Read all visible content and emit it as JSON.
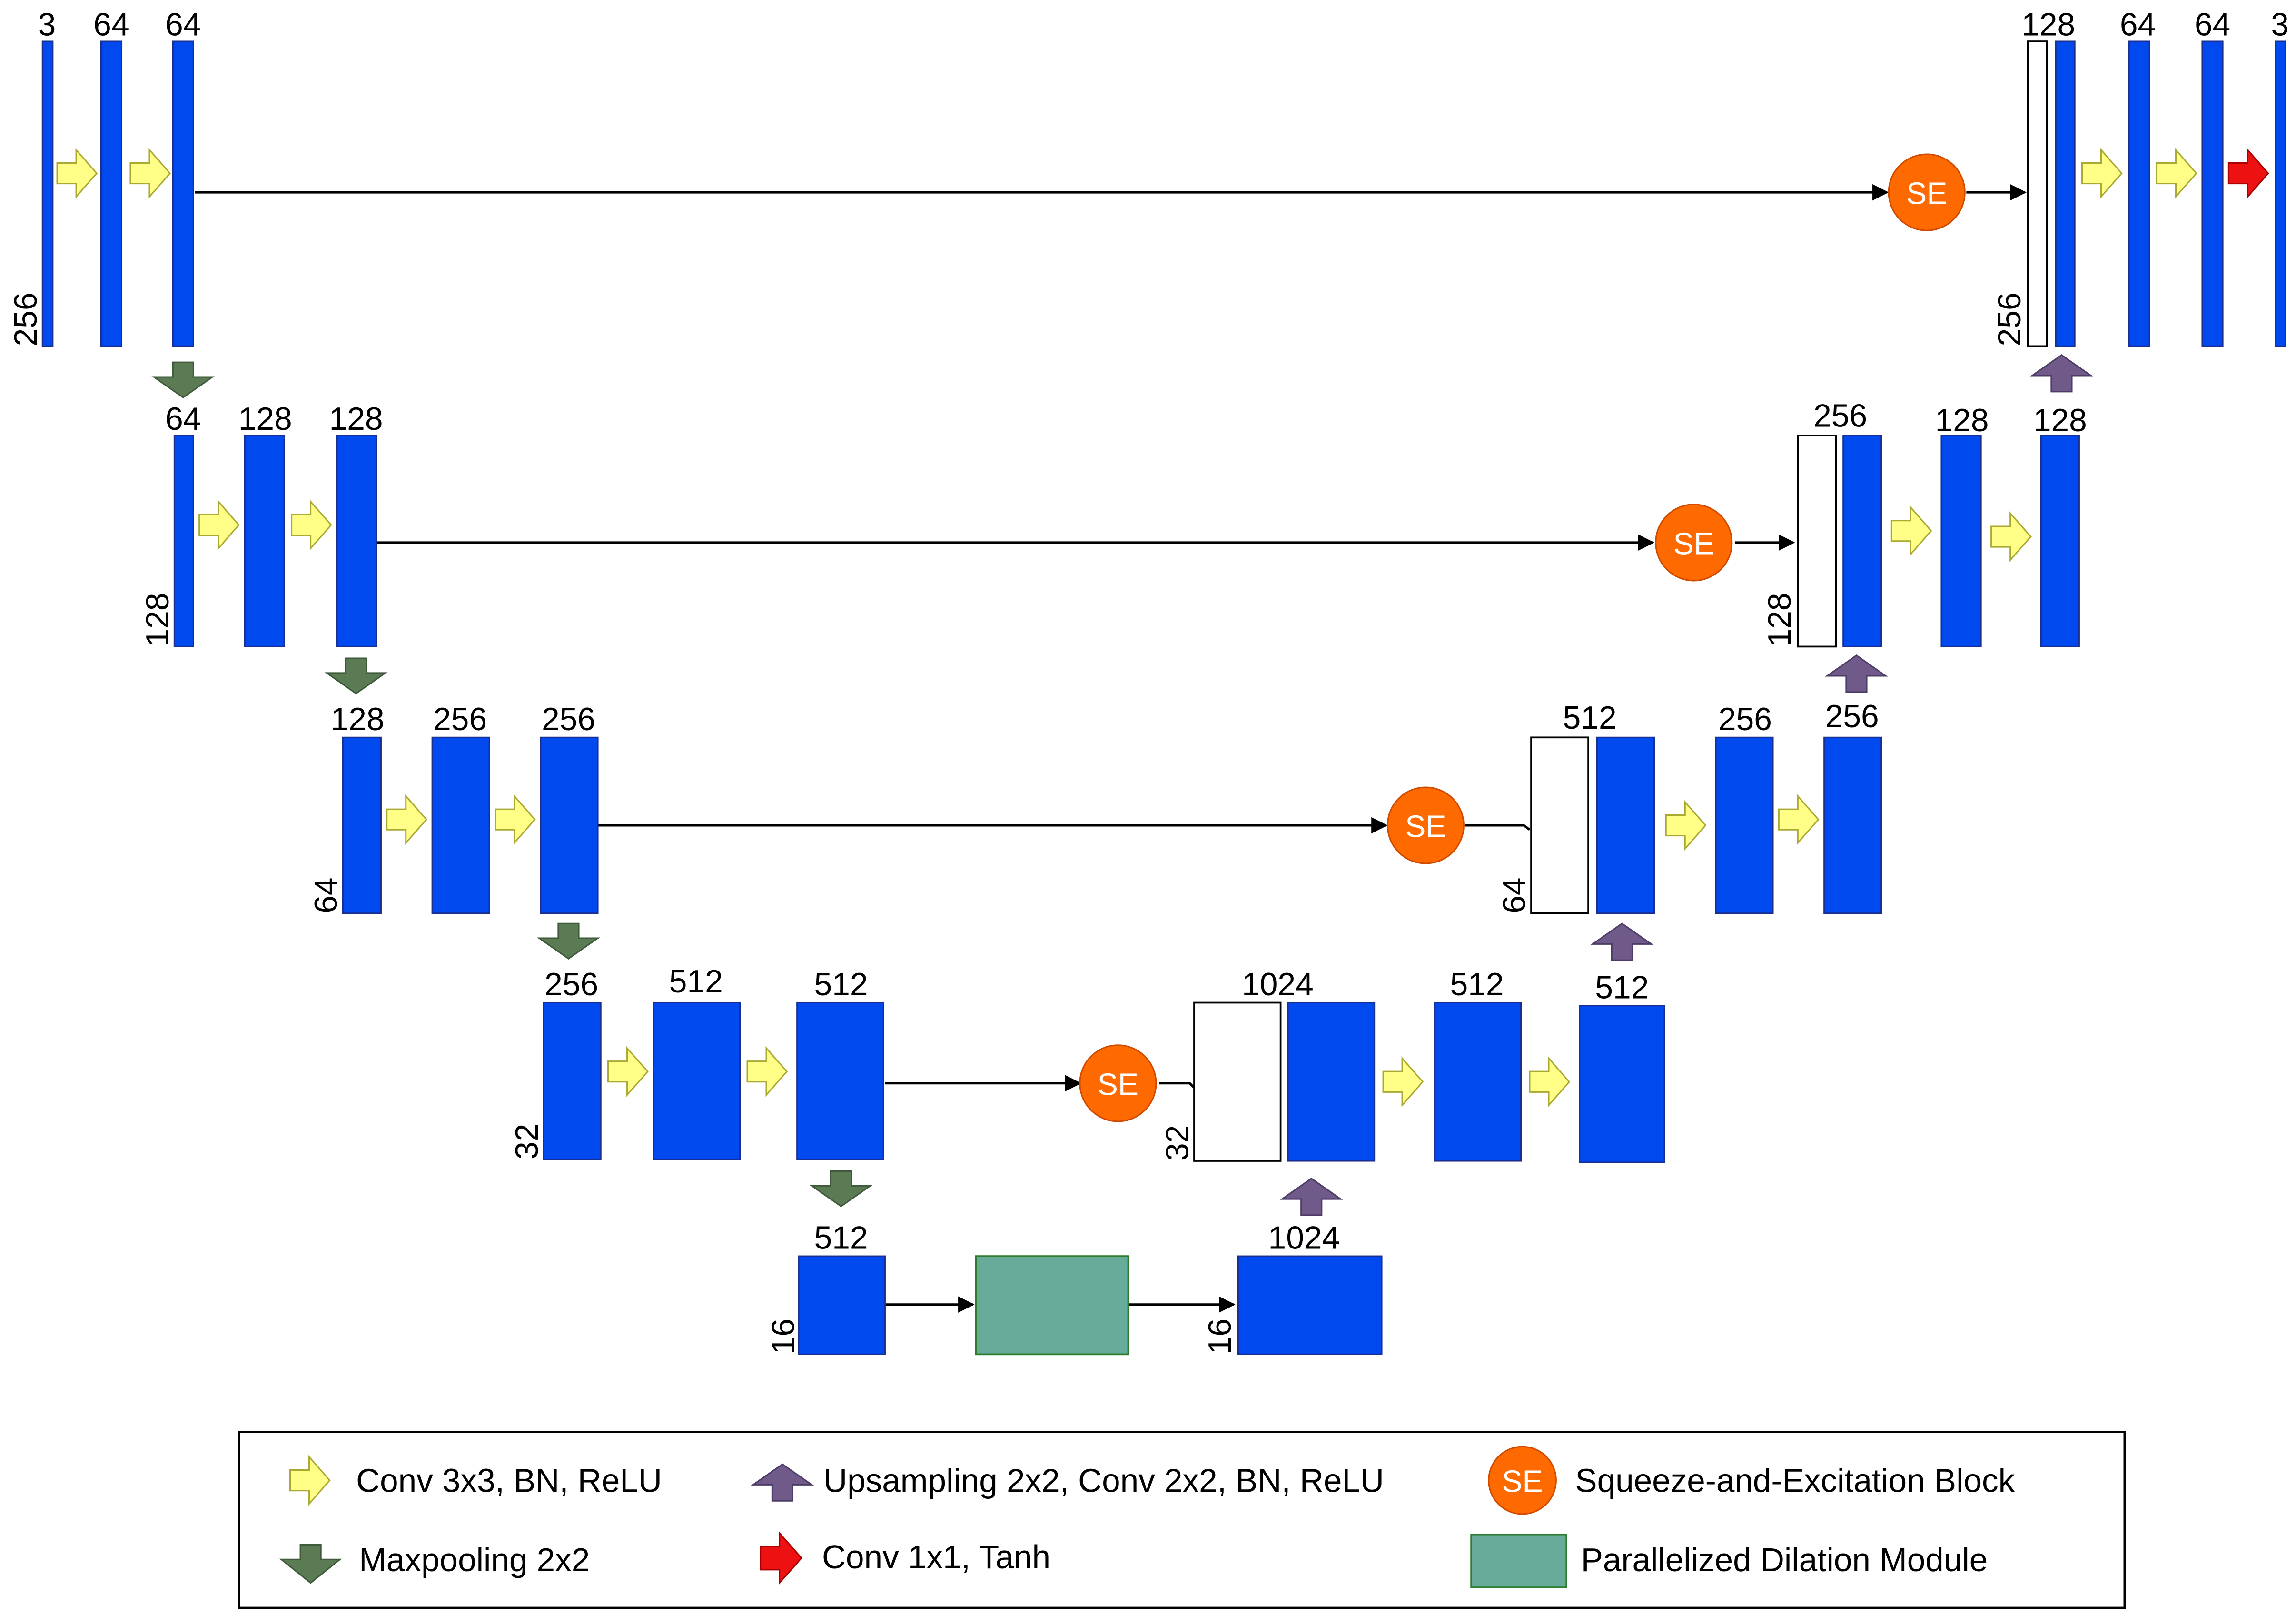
{
  "colors": {
    "feature_map": "#0049ef",
    "feature_map_stroke": "#1a2f8f",
    "concat_map": "#ffffff",
    "conv_arrow": "#ffff88",
    "maxpool_arrow": "#5b7b55",
    "upsample_arrow": "#6f5a8a",
    "final_arrow": "#ee1111",
    "se_block": "#ff6a00",
    "dilation_module": "#67ab9a"
  },
  "icons": {
    "conv": "yellow-right-arrow-icon",
    "maxpool": "green-down-arrow-icon",
    "upsample": "purple-up-arrow-icon",
    "final_conv": "red-right-arrow-icon",
    "se": "orange-circle-se-icon"
  },
  "se_text": "SE",
  "encoder": {
    "level1": {
      "channels": [
        "3",
        "64",
        "64"
      ],
      "size": "256"
    },
    "level2": {
      "channels": [
        "64",
        "128",
        "128"
      ],
      "size": "128"
    },
    "level3": {
      "channels": [
        "128",
        "256",
        "256"
      ],
      "size": "64"
    },
    "level4": {
      "channels": [
        "256",
        "512",
        "512"
      ],
      "size": "32"
    }
  },
  "bottleneck": {
    "channels": [
      "512",
      "1024"
    ],
    "size_left": "16",
    "size_right": "16"
  },
  "decoder": {
    "level4": {
      "channels": [
        "1024",
        "512",
        "512"
      ],
      "size": "32"
    },
    "level3": {
      "channels": [
        "512",
        "256",
        "256"
      ],
      "size": "64"
    },
    "level2": {
      "channels": [
        "256",
        "128",
        "128"
      ],
      "size": "128"
    },
    "level1": {
      "channels": [
        "128",
        "64",
        "64",
        "3"
      ],
      "size": "256"
    }
  },
  "legend": {
    "conv": "Conv 3x3, BN, ReLU",
    "upsample": "Upsampling 2x2, Conv 2x2, BN, ReLU",
    "se": "Squeeze-and-Excitation Block",
    "maxpool": "Maxpooling 2x2",
    "final_conv": "Conv 1x1, Tanh",
    "dilation": "Parallelized Dilation Module"
  }
}
